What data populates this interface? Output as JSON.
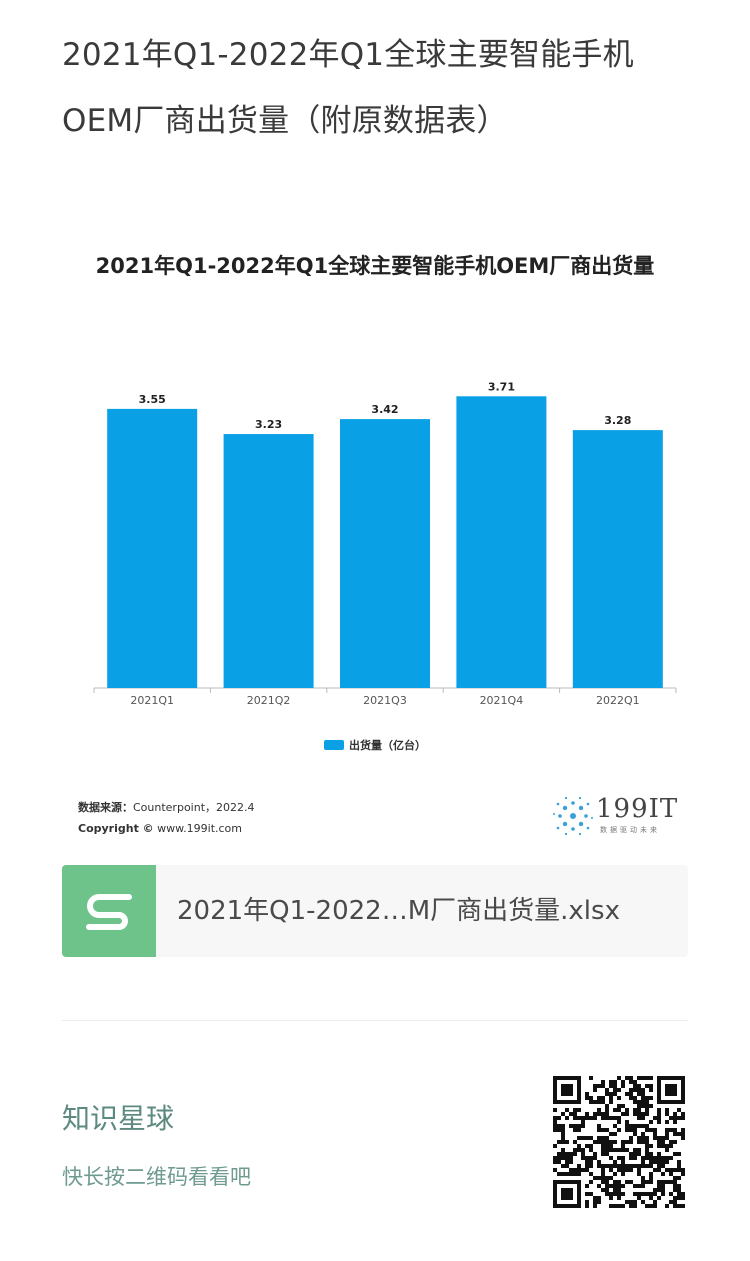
{
  "page": {
    "title_line1": "2021年Q1-2022年Q1全球主要智能手机",
    "title_line2": "OEM厂商出货量（附原数据表）"
  },
  "chart": {
    "title": "2021年Q1-2022年Q1全球主要智能手机OEM厂商出货量",
    "legend_label": "出货量（亿台）",
    "bar_color": "#0aa0e6",
    "source_label": "数据来源：",
    "source_value": "Counterpoint，2022.4",
    "copyright_label": "Copyright ©",
    "copyright_value": "www.199it.com",
    "logo_text": "199IT",
    "logo_sub": "数据驱动未来"
  },
  "chart_data": {
    "type": "bar",
    "title": "2021年Q1-2022年Q1全球主要智能手机OEM厂商出货量",
    "categories": [
      "2021Q1",
      "2021Q2",
      "2021Q3",
      "2021Q4",
      "2022Q1"
    ],
    "series": [
      {
        "name": "出货量（亿台）",
        "values": [
          3.55,
          3.23,
          3.42,
          3.71,
          3.28
        ]
      }
    ],
    "ylim": [
      0,
      4
    ],
    "grid": false,
    "legend_position": "bottom"
  },
  "attachment": {
    "icon": "spreadsheet-s-icon",
    "icon_color": "#6dc38a",
    "file_name": "2021年Q1-2022…M厂商出货量.xlsx"
  },
  "footer": {
    "title": "知识星球",
    "subtitle": "快长按二维码看看吧",
    "qr_icon": "qr-code-icon"
  }
}
